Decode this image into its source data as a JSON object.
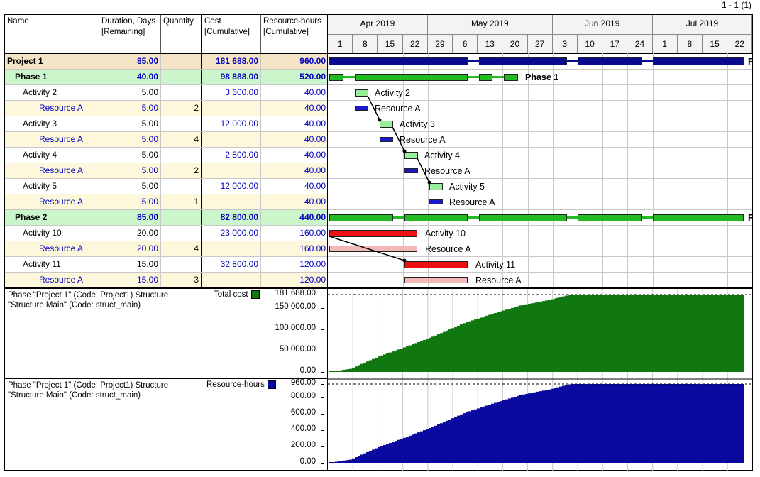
{
  "page_number": "1 - 1 (1)",
  "table": {
    "headers": {
      "name": "Name",
      "duration": "Duration, Days [Remaining]",
      "quantity": "Quantity",
      "cost": "Cost [Cumulative]",
      "hours": "Resource-hours [Cumulative]"
    },
    "rows": [
      {
        "name": "Project 1",
        "duration": "85.00",
        "quantity": "",
        "cost": "181 688.00",
        "hours": "960.00",
        "type": "project"
      },
      {
        "name": "Phase 1",
        "duration": "40.00",
        "quantity": "",
        "cost": "98 888.00",
        "hours": "520.00",
        "type": "phase"
      },
      {
        "name": "Activity 2",
        "duration": "5.00",
        "quantity": "",
        "cost": "3 600.00",
        "hours": "40.00",
        "type": "activity"
      },
      {
        "name": "Resource A",
        "duration": "5.00",
        "quantity": "2",
        "cost": "",
        "hours": "40.00",
        "type": "resource"
      },
      {
        "name": "Activity 3",
        "duration": "5.00",
        "quantity": "",
        "cost": "12 000.00",
        "hours": "40.00",
        "type": "activity"
      },
      {
        "name": "Resource A",
        "duration": "5.00",
        "quantity": "4",
        "cost": "",
        "hours": "40.00",
        "type": "resource"
      },
      {
        "name": "Activity 4",
        "duration": "5.00",
        "quantity": "",
        "cost": "2 800.00",
        "hours": "40.00",
        "type": "activity"
      },
      {
        "name": "Resource A",
        "duration": "5.00",
        "quantity": "2",
        "cost": "",
        "hours": "40.00",
        "type": "resource"
      },
      {
        "name": "Activity 5",
        "duration": "5.00",
        "quantity": "",
        "cost": "12 000.00",
        "hours": "40.00",
        "type": "activity"
      },
      {
        "name": "Resource A",
        "duration": "5.00",
        "quantity": "1",
        "cost": "",
        "hours": "40.00",
        "type": "resource"
      },
      {
        "name": "Phase 2",
        "duration": "85.00",
        "quantity": "",
        "cost": "82 800.00",
        "hours": "440.00",
        "type": "phase"
      },
      {
        "name": "Activity 10",
        "duration": "20.00",
        "quantity": "",
        "cost": "23 000.00",
        "hours": "160.00",
        "type": "activity"
      },
      {
        "name": "Resource A",
        "duration": "20.00",
        "quantity": "4",
        "cost": "",
        "hours": "160.00",
        "type": "resource"
      },
      {
        "name": "Activity 11",
        "duration": "15.00",
        "quantity": "",
        "cost": "32 800.00",
        "hours": "120.00",
        "type": "activity"
      },
      {
        "name": "Resource A",
        "duration": "15.00",
        "quantity": "3",
        "cost": "",
        "hours": "120.00",
        "type": "resource"
      }
    ]
  },
  "gantt": {
    "months": [
      "Apr 2019",
      "May 2019",
      "Jun 2019",
      "Jul 2019"
    ],
    "days": [
      "1",
      "8",
      "15",
      "22",
      "29",
      "6",
      "13",
      "20",
      "27",
      "3",
      "10",
      "17",
      "24",
      "1",
      "8",
      "15",
      "22"
    ],
    "labels": {
      "phase1": "Phase 1",
      "activity2": "Activity 2",
      "activity3": "Activity 3",
      "activity4": "Activity 4",
      "activity5": "Activity 5",
      "activity10": "Activity 10",
      "activity11": "Activity 11",
      "resource": "Resource A",
      "cut": "F"
    },
    "colors": {
      "project": "#0a0a8c",
      "phase": "#22bb22",
      "activity": "#99ee99",
      "resource": "#1a1acc",
      "critical": "#ee1111",
      "critical_resource": "#f2b8b8"
    }
  },
  "charts": {
    "cost": {
      "title": "Phase \"Project 1\" (Code: Project1) Structure \"Structure Main\" (Code: struct_main)",
      "series_label": "Total cost",
      "color": "#117711",
      "ticks": [
        "181 688.00",
        "150 000.00",
        "100 000.00",
        "50 000.00",
        "0.00"
      ],
      "tick_values": [
        181688,
        150000,
        100000,
        50000,
        0
      ],
      "max": 181688
    },
    "hours": {
      "title": "Phase \"Project 1\" (Code: Project1) Structure \"Structure Main\" (Code: struct_main)",
      "series_label": "Resource-hours",
      "color": "#0a0aa0",
      "ticks": [
        "960.00",
        "800.00",
        "600.00",
        "400.00",
        "200.00",
        "0.00"
      ],
      "tick_values": [
        960,
        800,
        600,
        400,
        200,
        0
      ],
      "max": 960
    }
  }
}
